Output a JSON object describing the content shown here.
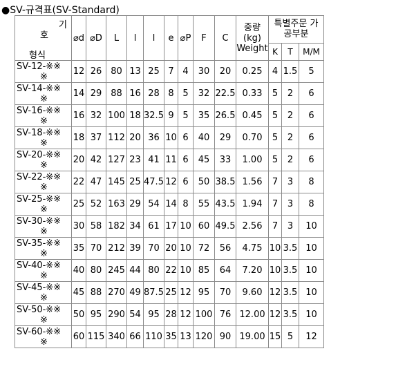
{
  "title": "●SV-규격표(SV-Standard)",
  "header": {
    "corner": {
      "top": "기",
      "middle": "호",
      "bottom": "형식"
    },
    "columns": [
      "⌀d",
      "⌀D",
      "L",
      "l",
      "l",
      "e",
      "⌀P",
      "F",
      "C"
    ],
    "weight": {
      "line1": "중량",
      "line2": "(kg)",
      "line3": "Weight"
    },
    "order": {
      "line1": "특별주문 가",
      "line2": "공부분",
      "sub": [
        "K",
        "T",
        "M/M"
      ]
    }
  },
  "rows": [
    {
      "model_1": "SV-12-※※",
      "model_2": "※",
      "cells": [
        "12",
        "26",
        "80",
        "13",
        "25",
        "7",
        "4",
        "30",
        "20",
        "0.25",
        "4",
        "1.5",
        "5"
      ]
    },
    {
      "model_1": "SV-14-※※",
      "model_2": "※",
      "cells": [
        "14",
        "29",
        "88",
        "16",
        "28",
        "8",
        "5",
        "32",
        "22.5",
        "0.33",
        "5",
        "2",
        "6"
      ]
    },
    {
      "model_1": "SV-16-※※",
      "model_2": "※",
      "cells": [
        "16",
        "32",
        "100",
        "18",
        "32.5",
        "9",
        "5",
        "35",
        "26.5",
        "0.45",
        "5",
        "2",
        "6"
      ]
    },
    {
      "model_1": "SV-18-※※",
      "model_2": "※",
      "cells": [
        "18",
        "37",
        "112",
        "20",
        "36",
        "10",
        "6",
        "40",
        "29",
        "0.70",
        "5",
        "2",
        "6"
      ]
    },
    {
      "model_1": "SV-20-※※",
      "model_2": "※",
      "cells": [
        "20",
        "42",
        "127",
        "23",
        "41",
        "11",
        "6",
        "45",
        "33",
        "1.00",
        "5",
        "2",
        "6"
      ]
    },
    {
      "model_1": "SV-22-※※",
      "model_2": "※",
      "cells": [
        "22",
        "47",
        "145",
        "25",
        "47.5",
        "12",
        "6",
        "50",
        "38.5",
        "1.56",
        "7",
        "3",
        "8"
      ]
    },
    {
      "model_1": "SV-25-※※",
      "model_2": "※",
      "cells": [
        "25",
        "52",
        "163",
        "29",
        "54",
        "14",
        "8",
        "55",
        "43.5",
        "1.94",
        "7",
        "3",
        "8"
      ]
    },
    {
      "model_1": "SV-30-※※",
      "model_2": "※",
      "cells": [
        "30",
        "58",
        "182",
        "34",
        "61",
        "17",
        "10",
        "60",
        "49.5",
        "2.56",
        "7",
        "3",
        "10"
      ]
    },
    {
      "model_1": "SV-35-※※",
      "model_2": "※",
      "cells": [
        "35",
        "70",
        "212",
        "39",
        "70",
        "20",
        "10",
        "72",
        "56",
        "4.75",
        "10",
        "3.5",
        "10"
      ]
    },
    {
      "model_1": "SV-40-※※",
      "model_2": "※",
      "cells": [
        "40",
        "80",
        "245",
        "44",
        "80",
        "22",
        "10",
        "85",
        "64",
        "7.20",
        "10",
        "3.5",
        "10"
      ]
    },
    {
      "model_1": "SV-45-※※",
      "model_2": "※",
      "cells": [
        "45",
        "88",
        "270",
        "49",
        "87.5",
        "25",
        "12",
        "95",
        "70",
        "9.60",
        "12",
        "3.5",
        "10"
      ]
    },
    {
      "model_1": "SV-50-※※",
      "model_2": "※",
      "cells": [
        "50",
        "95",
        "290",
        "54",
        "95",
        "28",
        "12",
        "100",
        "76",
        "12.00",
        "12",
        "3.5",
        "10"
      ]
    },
    {
      "model_1": "SV-60-※※",
      "model_2": "※",
      "cells": [
        "60",
        "115",
        "340",
        "66",
        "110",
        "35",
        "13",
        "120",
        "90",
        "19.00",
        "15",
        "5",
        "12"
      ]
    }
  ]
}
